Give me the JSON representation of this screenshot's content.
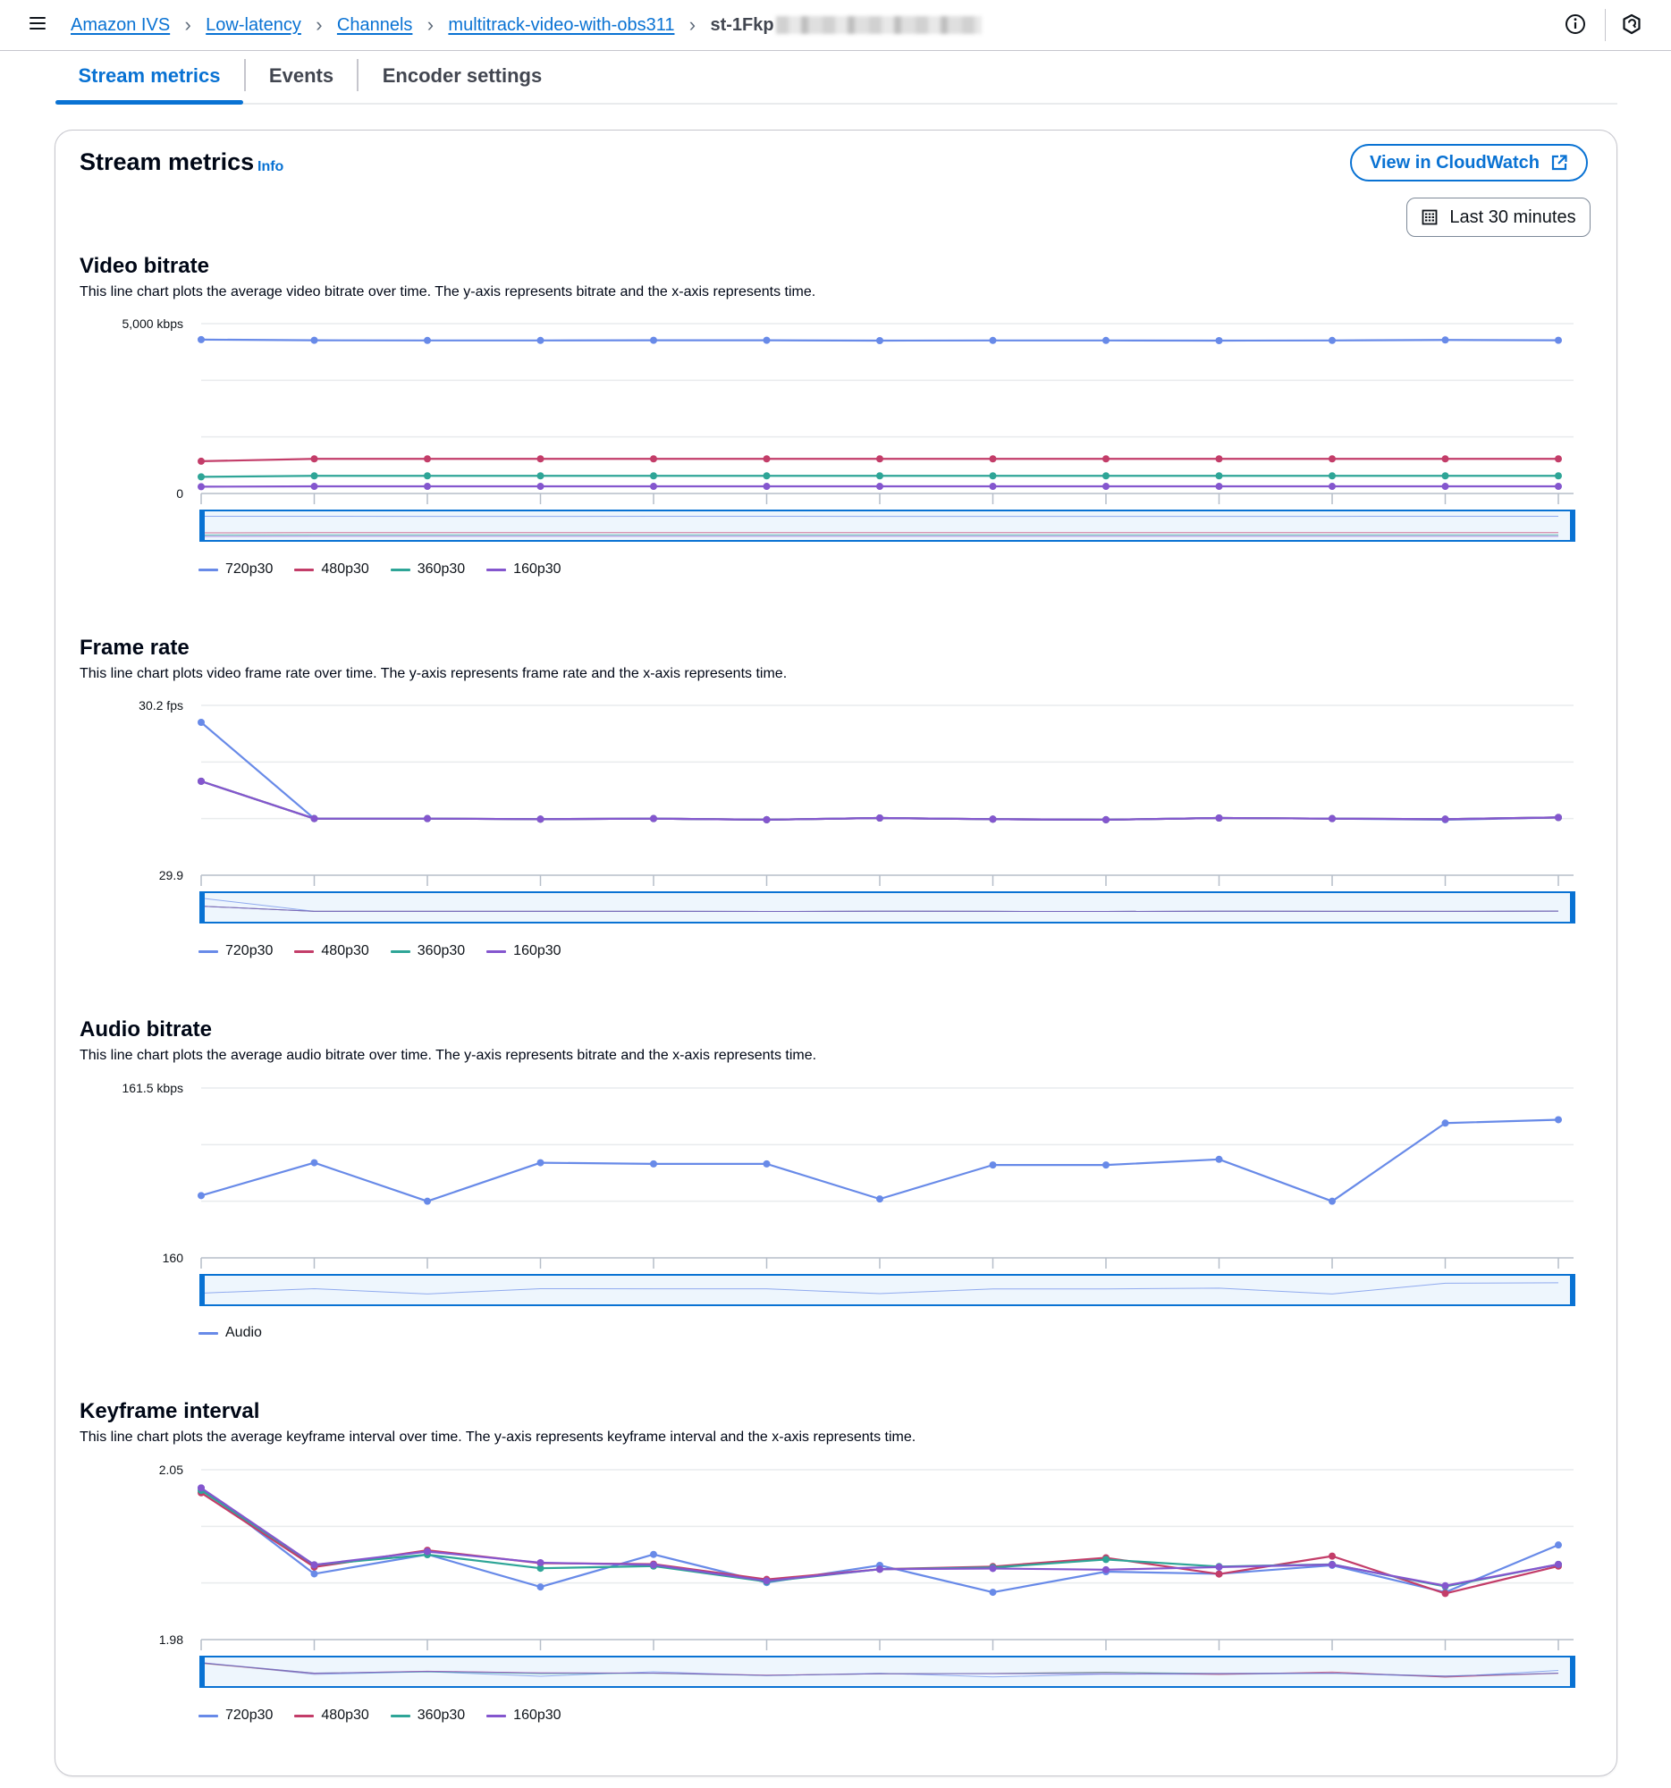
{
  "breadcrumbs": {
    "items": [
      "Amazon IVS",
      "Low-latency",
      "Channels",
      "multitrack-video-with-obs311"
    ],
    "current": "st-1Fkp"
  },
  "header": {
    "menu_icon": "hamburger-menu-icon",
    "info_icon": "info-circle-icon",
    "settings_icon": "notifications-icon"
  },
  "tabs": [
    {
      "label": "Stream metrics",
      "active": true
    },
    {
      "label": "Events",
      "active": false
    },
    {
      "label": "Encoder settings",
      "active": false
    }
  ],
  "panel": {
    "title": "Stream metrics",
    "info_label": "Info",
    "cloudwatch_label": "View in CloudWatch",
    "time_range_label": "Last 30 minutes"
  },
  "colors": {
    "720p30": "#688ae8",
    "480p30": "#c33d69",
    "360p30": "#2ea597",
    "160p30": "#8456ce",
    "Audio": "#688ae8",
    "accent": "#0972d3"
  },
  "chart_data": [
    {
      "type": "line",
      "title": "Video bitrate",
      "description": "This line chart plots the average video bitrate over time. The y-axis represents bitrate and the x-axis represents time.",
      "ytick_labels": [
        "5,000 kbps",
        "0"
      ],
      "ylim": [
        0,
        5000
      ],
      "x": [
        1,
        2,
        3,
        4,
        5,
        6,
        7,
        8,
        9,
        10,
        11,
        12,
        13
      ],
      "series": [
        {
          "name": "720p30",
          "values": [
            4530,
            4510,
            4505,
            4505,
            4510,
            4510,
            4500,
            4505,
            4505,
            4500,
            4505,
            4520,
            4510
          ]
        },
        {
          "name": "480p30",
          "values": [
            950,
            1020,
            1020,
            1020,
            1020,
            1020,
            1020,
            1020,
            1020,
            1020,
            1020,
            1020,
            1020
          ]
        },
        {
          "name": "360p30",
          "values": [
            490,
            520,
            520,
            520,
            520,
            520,
            520,
            520,
            520,
            520,
            520,
            520,
            520
          ]
        },
        {
          "name": "160p30",
          "values": [
            200,
            210,
            210,
            210,
            210,
            210,
            210,
            210,
            210,
            210,
            210,
            210,
            210
          ]
        }
      ],
      "legend": [
        "720p30",
        "480p30",
        "360p30",
        "160p30"
      ],
      "grid": true
    },
    {
      "type": "line",
      "title": "Frame rate",
      "description": "This line chart plots video frame rate over time. The y-axis represents frame rate and the x-axis represents time.",
      "ytick_labels": [
        "30.2 fps",
        "29.9"
      ],
      "ylim": [
        29.9,
        30.2
      ],
      "x": [
        1,
        2,
        3,
        4,
        5,
        6,
        7,
        8,
        9,
        10,
        11,
        12,
        13
      ],
      "series": [
        {
          "name": "720p30",
          "values": [
            30.17,
            30.0,
            30.0,
            29.999,
            30.0,
            29.998,
            30.001,
            29.999,
            29.998,
            30.001,
            30.0,
            29.998,
            30.002
          ]
        },
        {
          "name": "480p30",
          "values": [
            30.066,
            30.0,
            30.0,
            29.999,
            30.0,
            29.998,
            30.001,
            29.999,
            29.998,
            30.001,
            30.0,
            29.999,
            30.002
          ]
        },
        {
          "name": "360p30",
          "values": [
            30.066,
            30.0,
            30.0,
            29.999,
            30.0,
            29.998,
            30.001,
            29.999,
            29.998,
            30.001,
            30.0,
            29.999,
            30.002
          ]
        },
        {
          "name": "160p30",
          "values": [
            30.066,
            30.0,
            30.0,
            29.999,
            30.0,
            29.998,
            30.001,
            29.999,
            29.998,
            30.001,
            30.0,
            29.999,
            30.002
          ]
        }
      ],
      "legend": [
        "720p30",
        "480p30",
        "360p30",
        "160p30"
      ],
      "grid": true
    },
    {
      "type": "line",
      "title": "Audio bitrate",
      "description": "This line chart plots the average audio bitrate over time. The y-axis represents bitrate and the x-axis represents time.",
      "ytick_labels": [
        "161.5 kbps",
        "160"
      ],
      "ylim": [
        160,
        161.5
      ],
      "x": [
        1,
        2,
        3,
        4,
        5,
        6,
        7,
        8,
        9,
        10,
        11,
        12,
        13
      ],
      "series": [
        {
          "name": "Audio",
          "values": [
            160.55,
            160.84,
            160.5,
            160.84,
            160.83,
            160.83,
            160.52,
            160.82,
            160.82,
            160.87,
            160.5,
            161.19,
            161.22
          ]
        }
      ],
      "legend": [
        "Audio"
      ],
      "grid": true
    },
    {
      "type": "line",
      "title": "Keyframe interval",
      "description": "This line chart plots the average keyframe interval over time. The y-axis represents keyframe interval and the x-axis represents time.",
      "ytick_labels": [
        "2.05",
        "1.98"
      ],
      "ylim": [
        1.98,
        2.05
      ],
      "x": [
        1,
        2,
        3,
        4,
        5,
        6,
        7,
        8,
        9,
        10,
        11,
        12,
        13
      ],
      "series": [
        {
          "name": "720p30",
          "values": [
            2.0425,
            2.0071,
            2.0151,
            2.0017,
            2.0151,
            2.0035,
            2.0106,
            1.9995,
            2.008,
            2.0071,
            2.0106,
            1.9995,
            2.019
          ]
        },
        {
          "name": "480p30",
          "values": [
            2.0405,
            2.0099,
            2.0168,
            2.0115,
            2.0111,
            2.0048,
            2.009,
            2.0101,
            2.0137,
            2.007,
            2.0144,
            1.999,
            2.0103
          ]
        },
        {
          "name": "360p30",
          "values": [
            2.0415,
            2.0108,
            2.015,
            2.0094,
            2.0103,
            2.0039,
            2.009,
            2.0097,
            2.013,
            2.0101,
            2.011,
            2.0019,
            2.011
          ]
        },
        {
          "name": "160p30",
          "values": [
            2.0425,
            2.0108,
            2.0163,
            2.0117,
            2.0108,
            2.0042,
            2.009,
            2.0093,
            2.0088,
            2.0099,
            2.0109,
            2.0022,
            2.011
          ]
        }
      ],
      "legend": [
        "720p30",
        "480p30",
        "360p30",
        "160p30"
      ],
      "grid": true
    }
  ]
}
